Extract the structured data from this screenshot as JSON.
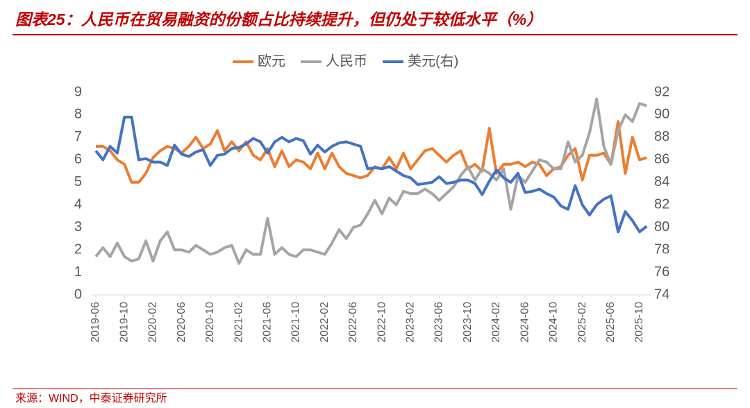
{
  "chart_data": {
    "type": "line",
    "title": "图表25：人民币在贸易融资的份额占比持续提升，但仍处于较低水平（%）",
    "source": "来源：WIND，中泰证券研究所",
    "legend": "top",
    "categories": [
      "2019-06",
      null,
      null,
      null,
      "2019-10",
      null,
      null,
      null,
      "2020-02",
      null,
      null,
      null,
      "2020-06",
      null,
      null,
      null,
      "2020-10",
      null,
      null,
      null,
      "2021-02",
      null,
      null,
      null,
      "2021-06",
      null,
      null,
      null,
      "2021-10",
      null,
      null,
      null,
      "2022-02",
      null,
      null,
      null,
      "2022-06",
      null,
      null,
      null,
      "2022-10",
      null,
      null,
      null,
      "2023-02",
      null,
      null,
      null,
      "2023-06",
      null,
      null,
      null,
      "2023-10",
      null,
      null,
      null,
      "2024-02",
      null,
      null,
      null,
      "2024-06",
      null,
      null,
      null,
      "2024-10",
      null,
      null,
      null,
      "2025-02",
      null,
      null,
      null,
      "2025-06",
      null,
      null,
      null,
      "2025-10",
      null
    ],
    "series": [
      {
        "name": "欧元",
        "color": "#ED7D31",
        "values": [
          6.6,
          6.6,
          6.4,
          6.0,
          5.8,
          5.0,
          5.0,
          5.4,
          6.1,
          6.4,
          6.6,
          6.5,
          6.3,
          6.6,
          7.0,
          6.5,
          6.7,
          7.3,
          6.4,
          6.8,
          6.4,
          6.8,
          6.2,
          6.0,
          6.5,
          5.7,
          6.4,
          5.7,
          6.0,
          5.9,
          5.6,
          6.3,
          5.6,
          6.3,
          5.7,
          5.4,
          5.3,
          5.2,
          5.3,
          5.7,
          5.6,
          6.1,
          5.6,
          6.3,
          5.6,
          6.0,
          6.4,
          6.5,
          6.2,
          5.9,
          6.2,
          6.4,
          5.6,
          5.8,
          5.5,
          7.4,
          5.4,
          5.8,
          5.8,
          5.9,
          5.7,
          5.9,
          5.8,
          5.3,
          5.6,
          5.7,
          6.2,
          6.5,
          5.1,
          6.2,
          6.2,
          6.3,
          5.8,
          7.7,
          5.4,
          7.0,
          6.0,
          6.1
        ]
      },
      {
        "name": "人民币",
        "color": "#A5A5A5",
        "values": [
          1.7,
          2.1,
          1.7,
          2.3,
          1.7,
          1.5,
          1.6,
          2.4,
          1.5,
          2.4,
          2.8,
          2.0,
          2.0,
          1.9,
          2.2,
          2.0,
          1.8,
          1.9,
          2.1,
          2.2,
          1.4,
          2.0,
          1.8,
          1.8,
          3.4,
          1.8,
          2.1,
          1.8,
          1.7,
          2.0,
          2.0,
          1.9,
          1.8,
          2.3,
          2.9,
          2.5,
          3.0,
          3.1,
          3.6,
          4.2,
          3.6,
          4.3,
          4.0,
          4.6,
          4.5,
          4.5,
          4.7,
          4.5,
          4.2,
          4.5,
          4.8,
          5.3,
          5.7,
          5.1,
          5.6,
          5.4,
          5.1,
          5.6,
          3.8,
          5.3,
          5.0,
          5.5,
          6.0,
          5.9,
          5.6,
          5.6,
          6.8,
          5.9,
          6.2,
          7.2,
          8.7,
          6.6,
          5.8,
          7.3,
          8.0,
          7.7,
          8.5,
          8.4
        ]
      },
      {
        "name": "美元(右)",
        "color": "#4472C4",
        "axis": "y2",
        "values": [
          86.8,
          86.0,
          87.2,
          86.6,
          89.8,
          89.8,
          86.0,
          86.1,
          85.8,
          85.8,
          85.5,
          87.3,
          86.5,
          86.3,
          86.7,
          86.9,
          85.5,
          86.4,
          86.5,
          87.0,
          87.1,
          87.4,
          87.9,
          87.6,
          86.6,
          87.6,
          88.0,
          87.6,
          87.9,
          87.7,
          86.5,
          87.3,
          86.7,
          87.2,
          87.5,
          87.6,
          87.4,
          87.2,
          85.2,
          85.3,
          85.2,
          85.4,
          85.0,
          84.6,
          84.4,
          83.8,
          83.9,
          84.0,
          84.5,
          83.9,
          84.0,
          84.2,
          84.2,
          83.9,
          82.9,
          84.1,
          85.1,
          84.4,
          84.0,
          84.8,
          83.1,
          83.2,
          83.4,
          83.0,
          82.7,
          81.9,
          81.6,
          83.7,
          82.0,
          81.1,
          82.0,
          82.5,
          82.8,
          79.6,
          81.4,
          80.6,
          79.6,
          80.1
        ]
      }
    ],
    "ylim": [
      0,
      9
    ],
    "yticks": [
      0,
      1,
      2,
      3,
      4,
      5,
      6,
      7,
      8,
      9
    ],
    "y2lim": [
      74,
      92
    ],
    "y2ticks": [
      74,
      76,
      78,
      80,
      82,
      84,
      86,
      88,
      90,
      92
    ],
    "grid": false
  }
}
